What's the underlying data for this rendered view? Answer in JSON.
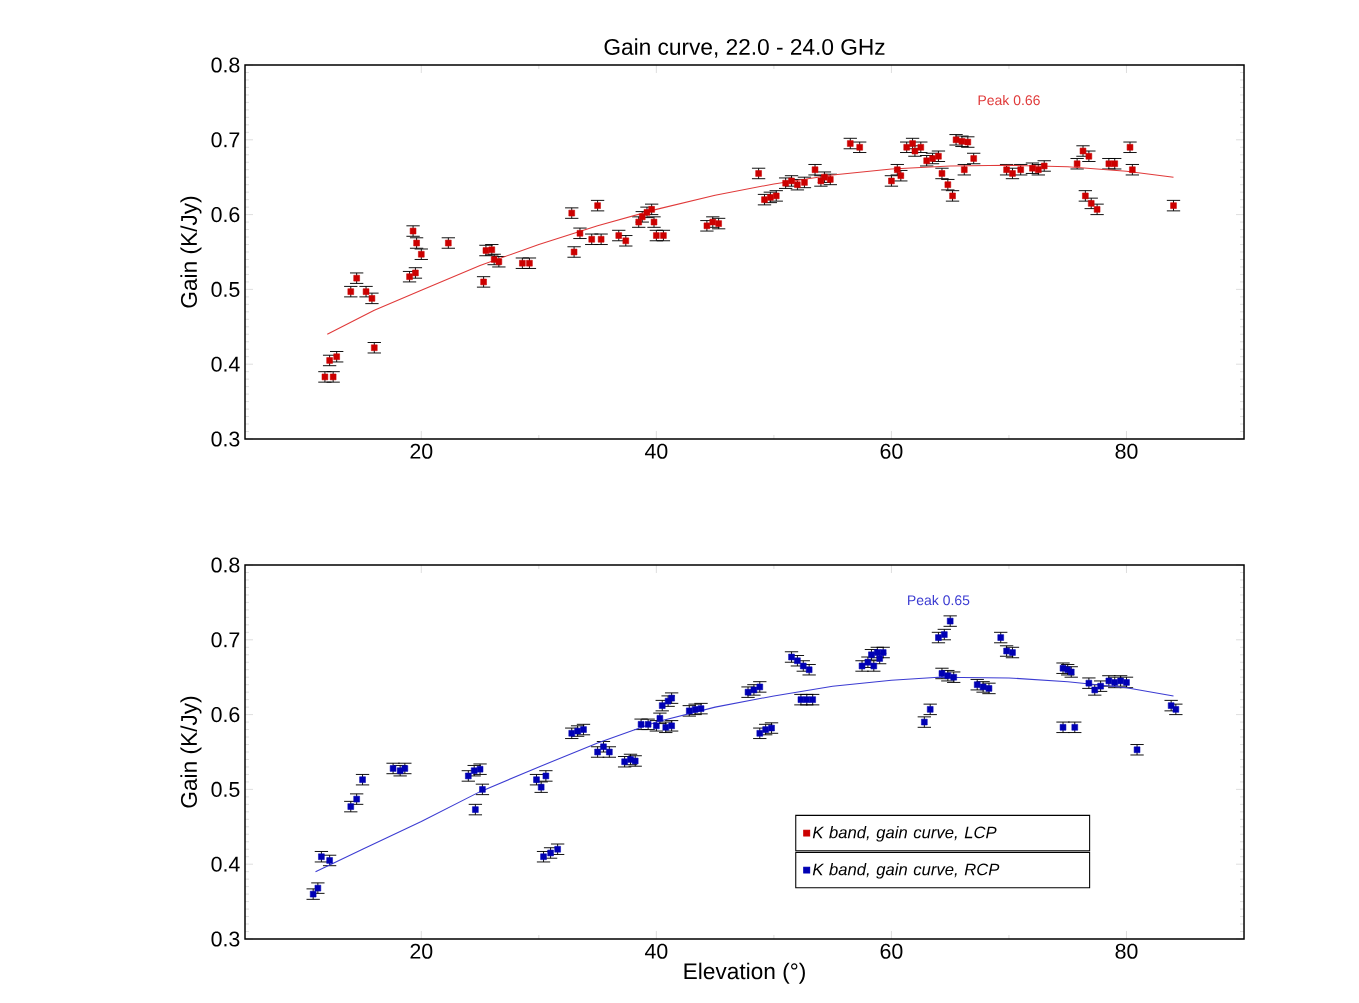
{
  "chart_data": [
    {
      "type": "scatter",
      "title": "Gain curve, 22.0 - 24.0 GHz",
      "ylabel": "Gain (K/Jy)",
      "xlim": [
        5,
        90
      ],
      "ylim": [
        0.3,
        0.8
      ],
      "xticks": [
        20,
        40,
        60,
        80
      ],
      "yticks": [
        0.3,
        0.4,
        0.5,
        0.6,
        0.7,
        0.8
      ],
      "legend": "bottom",
      "annotations": [
        "Peak 0.66"
      ],
      "series": [
        {
          "name": "K band, gain curve, LCP",
          "color": "#cc0000",
          "marker": "square",
          "x": [
            11.8,
            12.5,
            12.2,
            12.8,
            14,
            14.5,
            15.3,
            15.8,
            16,
            19,
            19.5,
            19.3,
            19.6,
            20,
            22.3,
            25.3,
            25.5,
            26,
            26.2,
            26.6,
            28.6,
            29.2,
            32.8,
            33,
            33.5,
            34.5,
            35,
            35.3,
            36.8,
            37.4,
            38.5,
            38.8,
            39.2,
            39.6,
            39.8,
            40,
            40.6,
            44.3,
            44.8,
            45.3,
            48.7,
            49.2,
            49.7,
            50.2,
            51,
            51.5,
            52,
            52.6,
            53.5,
            54,
            54.3,
            54.8,
            56.5,
            57.3,
            60,
            60.5,
            60.8,
            61.3,
            61.8,
            62,
            62.5,
            63,
            63.5,
            64,
            64.3,
            64.8,
            65.2,
            65.5,
            66,
            66.5,
            66.2,
            67,
            69.8,
            70.3,
            71,
            72,
            72.5,
            73,
            75.8,
            76.3,
            76.8,
            76.5,
            77,
            77.5,
            78.5,
            79,
            80.3,
            80.5,
            84
          ],
          "values": [
            0.383,
            0.383,
            0.405,
            0.41,
            0.497,
            0.515,
            0.497,
            0.488,
            0.422,
            0.517,
            0.522,
            0.578,
            0.562,
            0.547,
            0.562,
            0.51,
            0.552,
            0.553,
            0.54,
            0.537,
            0.535,
            0.535,
            0.602,
            0.55,
            0.575,
            0.567,
            0.612,
            0.567,
            0.572,
            0.565,
            0.59,
            0.597,
            0.603,
            0.607,
            0.59,
            0.572,
            0.572,
            0.585,
            0.59,
            0.588,
            0.655,
            0.62,
            0.623,
            0.625,
            0.642,
            0.645,
            0.64,
            0.643,
            0.66,
            0.645,
            0.65,
            0.647,
            0.695,
            0.69,
            0.645,
            0.66,
            0.652,
            0.69,
            0.695,
            0.685,
            0.69,
            0.672,
            0.675,
            0.678,
            0.655,
            0.64,
            0.625,
            0.7,
            0.698,
            0.697,
            0.66,
            0.675,
            0.66,
            0.655,
            0.66,
            0.662,
            0.66,
            0.665,
            0.668,
            0.685,
            0.678,
            0.625,
            0.615,
            0.607,
            0.668,
            0.668,
            0.69,
            0.66,
            0.612
          ],
          "errors": [
            0.007,
            0.007,
            0.007,
            0.007,
            0.007,
            0.007,
            0.007,
            0.007,
            0.007,
            0.007,
            0.007,
            0.007,
            0.007,
            0.007,
            0.007,
            0.007,
            0.007,
            0.007,
            0.007,
            0.007,
            0.007,
            0.007,
            0.007,
            0.007,
            0.007,
            0.007,
            0.007,
            0.007,
            0.007,
            0.007,
            0.007,
            0.007,
            0.007,
            0.007,
            0.007,
            0.007,
            0.007,
            0.007,
            0.007,
            0.007,
            0.007,
            0.007,
            0.007,
            0.007,
            0.007,
            0.007,
            0.007,
            0.007,
            0.007,
            0.007,
            0.007,
            0.007,
            0.007,
            0.007,
            0.007,
            0.007,
            0.007,
            0.007,
            0.007,
            0.007,
            0.007,
            0.007,
            0.007,
            0.007,
            0.007,
            0.007,
            0.007,
            0.007,
            0.007,
            0.007,
            0.007,
            0.007,
            0.007,
            0.007,
            0.007,
            0.007,
            0.007,
            0.007,
            0.007,
            0.007,
            0.007,
            0.007,
            0.007,
            0.007,
            0.007,
            0.007,
            0.007,
            0.007,
            0.007
          ]
        },
        {
          "type": "line",
          "color": "#e03a3a",
          "x": [
            12,
            16,
            20,
            25,
            30,
            35,
            40,
            45,
            50,
            55,
            60,
            65,
            70,
            75,
            80,
            84
          ],
          "values": [
            0.44,
            0.472,
            0.499,
            0.532,
            0.56,
            0.585,
            0.607,
            0.626,
            0.641,
            0.653,
            0.661,
            0.665,
            0.666,
            0.664,
            0.658,
            0.65
          ]
        }
      ]
    },
    {
      "type": "scatter",
      "xlabel": "Elevation (°)",
      "ylabel": "Gain (K/Jy)",
      "xlim": [
        5,
        90
      ],
      "ylim": [
        0.3,
        0.8
      ],
      "xticks": [
        20,
        40,
        60,
        80
      ],
      "yticks": [
        0.3,
        0.4,
        0.5,
        0.6,
        0.7,
        0.8
      ],
      "legend": "bottom right",
      "annotations": [
        "Peak 0.65"
      ],
      "series": [
        {
          "name": "K band, gain curve, RCP",
          "color": "#0000b4",
          "marker": "square",
          "x": [
            10.8,
            11.2,
            11.5,
            12.2,
            14,
            14.5,
            15,
            17.6,
            18.2,
            18.6,
            24,
            24.5,
            24.6,
            25,
            25.2,
            29.8,
            30.2,
            30.6,
            30.4,
            31,
            31.6,
            32.8,
            33.3,
            33.8,
            35,
            35.5,
            36,
            37.3,
            37.8,
            38.2,
            38.7,
            39.3,
            40,
            40.3,
            40.5,
            41,
            41.3,
            40.8,
            41.3,
            42.8,
            43.3,
            43.8,
            47.8,
            48.3,
            48.8,
            48.8,
            49.3,
            49.8,
            51.5,
            52,
            52.5,
            53,
            52.3,
            52.8,
            53.3,
            57.5,
            58,
            58.3,
            58.8,
            59.3,
            58.5,
            59,
            62.8,
            63.3,
            64,
            64.5,
            65,
            64.3,
            64.8,
            65.3,
            67.3,
            67.8,
            68.3,
            69.3,
            69.8,
            70.3,
            74.6,
            75,
            75.3,
            74.6,
            75.6,
            76.8,
            77.3,
            77.8,
            78.5,
            79,
            79.5,
            80,
            80.9,
            83.8,
            84.2
          ],
          "values": [
            0.36,
            0.368,
            0.41,
            0.405,
            0.477,
            0.487,
            0.513,
            0.528,
            0.525,
            0.528,
            0.518,
            0.525,
            0.473,
            0.527,
            0.5,
            0.513,
            0.503,
            0.518,
            0.41,
            0.415,
            0.42,
            0.575,
            0.578,
            0.58,
            0.55,
            0.557,
            0.55,
            0.537,
            0.54,
            0.538,
            0.587,
            0.587,
            0.585,
            0.595,
            0.612,
            0.618,
            0.622,
            0.583,
            0.585,
            0.605,
            0.607,
            0.608,
            0.63,
            0.633,
            0.637,
            0.575,
            0.58,
            0.582,
            0.677,
            0.672,
            0.665,
            0.66,
            0.62,
            0.62,
            0.62,
            0.665,
            0.67,
            0.68,
            0.683,
            0.683,
            0.665,
            0.675,
            0.59,
            0.607,
            0.703,
            0.707,
            0.725,
            0.655,
            0.652,
            0.65,
            0.64,
            0.637,
            0.635,
            0.703,
            0.685,
            0.683,
            0.662,
            0.66,
            0.657,
            0.583,
            0.583,
            0.642,
            0.633,
            0.638,
            0.645,
            0.643,
            0.645,
            0.643,
            0.553,
            0.612,
            0.607
          ],
          "errors": [
            0.007,
            0.007,
            0.007,
            0.007,
            0.007,
            0.007,
            0.007,
            0.007,
            0.007,
            0.007,
            0.007,
            0.007,
            0.007,
            0.007,
            0.007,
            0.007,
            0.007,
            0.007,
            0.007,
            0.007,
            0.007,
            0.007,
            0.007,
            0.007,
            0.007,
            0.007,
            0.007,
            0.007,
            0.007,
            0.007,
            0.007,
            0.007,
            0.007,
            0.007,
            0.007,
            0.007,
            0.007,
            0.007,
            0.007,
            0.007,
            0.007,
            0.007,
            0.007,
            0.007,
            0.007,
            0.007,
            0.007,
            0.007,
            0.007,
            0.007,
            0.007,
            0.007,
            0.007,
            0.007,
            0.007,
            0.007,
            0.007,
            0.007,
            0.007,
            0.007,
            0.007,
            0.007,
            0.007,
            0.007,
            0.007,
            0.007,
            0.007,
            0.007,
            0.007,
            0.007,
            0.007,
            0.007,
            0.007,
            0.007,
            0.007,
            0.007,
            0.007,
            0.007,
            0.007,
            0.007,
            0.007,
            0.007,
            0.007,
            0.007,
            0.007,
            0.007,
            0.007,
            0.007,
            0.007,
            0.007,
            0.007
          ]
        },
        {
          "type": "line",
          "color": "#3c3cd2",
          "x": [
            11,
            15,
            20,
            25,
            30,
            35,
            40,
            45,
            50,
            55,
            60,
            64,
            70,
            75,
            80,
            84
          ],
          "values": [
            0.39,
            0.42,
            0.457,
            0.497,
            0.53,
            0.562,
            0.59,
            0.61,
            0.625,
            0.638,
            0.646,
            0.65,
            0.649,
            0.644,
            0.636,
            0.625
          ]
        }
      ]
    }
  ]
}
